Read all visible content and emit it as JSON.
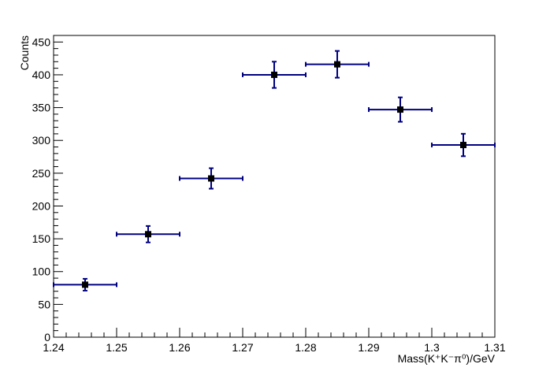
{
  "chart_data": {
    "type": "scatter",
    "x_label": "Mass(K⁺K⁻π⁰)/GeV",
    "y_label": "Counts",
    "series": [
      {
        "x": [
          1.245,
          1.255,
          1.265,
          1.275,
          1.285,
          1.295,
          1.305
        ],
        "values": [
          80,
          157,
          242,
          400,
          416,
          347,
          293
        ],
        "errors": [
          9,
          12.5,
          15.6,
          20,
          20.4,
          18.6,
          17.1
        ],
        "x_errors": [
          0.005,
          0.005,
          0.005,
          0.005,
          0.005,
          0.005,
          0.005
        ],
        "color": "#000080",
        "marker_color": "#000000"
      }
    ],
    "xlim": [
      1.24,
      1.31
    ],
    "xticks": [
      1.24,
      1.25,
      1.26,
      1.27,
      1.28,
      1.29,
      1.3,
      1.31
    ],
    "ylim": [
      0,
      460
    ],
    "yticks": [
      0,
      50,
      100,
      150,
      200,
      250,
      300,
      350,
      400,
      450
    ]
  }
}
